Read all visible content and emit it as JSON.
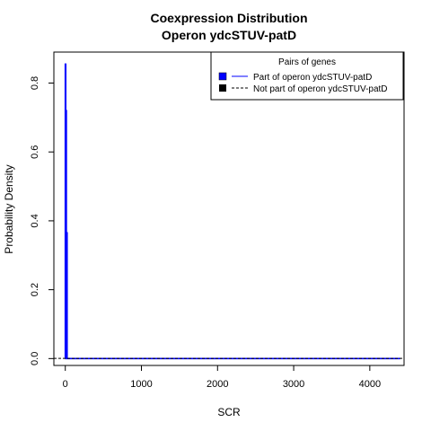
{
  "chart_data": {
    "type": "line",
    "title": "Coexpression Distribution",
    "subtitle": "Operon ydcSTUV-patD",
    "xlabel": "SCR",
    "ylabel": "Probability Density",
    "xlim": [
      -150,
      4450
    ],
    "ylim": [
      -0.02,
      0.89
    ],
    "x_ticks": [
      0,
      1000,
      2000,
      3000,
      4000
    ],
    "x_tick_labels": [
      "0",
      "1000",
      "2000",
      "3000",
      "4000"
    ],
    "y_ticks": [
      0.0,
      0.2,
      0.4,
      0.6,
      0.8
    ],
    "y_tick_labels": [
      "0.0",
      "0.2",
      "0.4",
      "0.6",
      "0.8"
    ],
    "grid": false,
    "legend": {
      "title": "Pairs of genes",
      "placement": "top-right",
      "entries": [
        {
          "label": "Part of operon ydcSTUV-patD",
          "color": "#0000ff",
          "style": "solid"
        },
        {
          "label": "Not part of operon ydcSTUV-patD",
          "color": "#000000",
          "style": "dashed"
        }
      ]
    },
    "series": [
      {
        "name": "Part of operon ydcSTUV-patD",
        "color": "#0000ff",
        "points": [
          [
            0,
            0
          ],
          [
            0,
            0.855
          ],
          [
            6,
            0.855
          ],
          [
            6,
            0
          ],
          [
            10,
            0
          ],
          [
            10,
            0.72
          ],
          [
            14,
            0.72
          ],
          [
            14,
            0
          ],
          [
            18,
            0
          ],
          [
            18,
            0.365
          ],
          [
            24,
            0.365
          ],
          [
            24,
            0
          ],
          [
            4400,
            0
          ]
        ]
      },
      {
        "name": "Not part of operon ydcSTUV-patD",
        "color": "#000000",
        "points": [
          [
            -150,
            0.0005
          ],
          [
            4450,
            0.0005
          ]
        ]
      }
    ]
  }
}
